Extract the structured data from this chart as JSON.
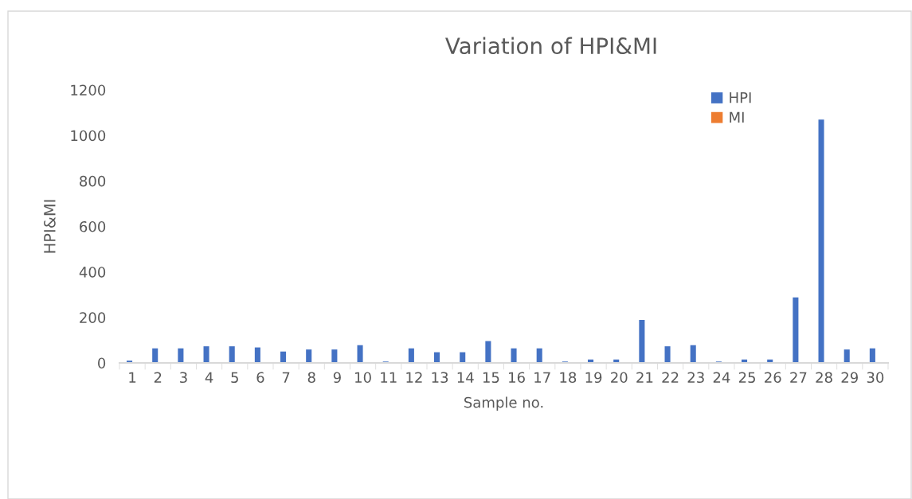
{
  "chart_data": {
    "type": "bar",
    "title": "Variation of HPI&MI",
    "xlabel": "Sample no.",
    "ylabel": "HPI&MI",
    "categories": [
      "1",
      "2",
      "3",
      "4",
      "5",
      "6",
      "7",
      "8",
      "9",
      "10",
      "11",
      "12",
      "13",
      "14",
      "15",
      "16",
      "17",
      "18",
      "19",
      "20",
      "21",
      "22",
      "23",
      "24",
      "25",
      "26",
      "27",
      "28",
      "29",
      "30"
    ],
    "series": [
      {
        "name": "HPI",
        "color": "#4472c4",
        "values": [
          10,
          64,
          64,
          73,
          73,
          68,
          50,
          59,
          59,
          78,
          6,
          64,
          47,
          47,
          96,
          64,
          64,
          6,
          15,
          15,
          189,
          73,
          78,
          6,
          15,
          15,
          288,
          1070,
          59,
          64
        ]
      },
      {
        "name": "MI",
        "color": "#ed7d31",
        "values": [
          0,
          0,
          0,
          0,
          0,
          0,
          0,
          0,
          0,
          0,
          0,
          0,
          0,
          0,
          0,
          0,
          0,
          0,
          0,
          0,
          0,
          0,
          0,
          0,
          0,
          0,
          0,
          0,
          0,
          0
        ]
      }
    ],
    "ylim": [
      0,
      1200
    ],
    "yticks": [
      0,
      200,
      400,
      600,
      800,
      1000,
      1200
    ],
    "grid": false,
    "legend": "top right"
  }
}
